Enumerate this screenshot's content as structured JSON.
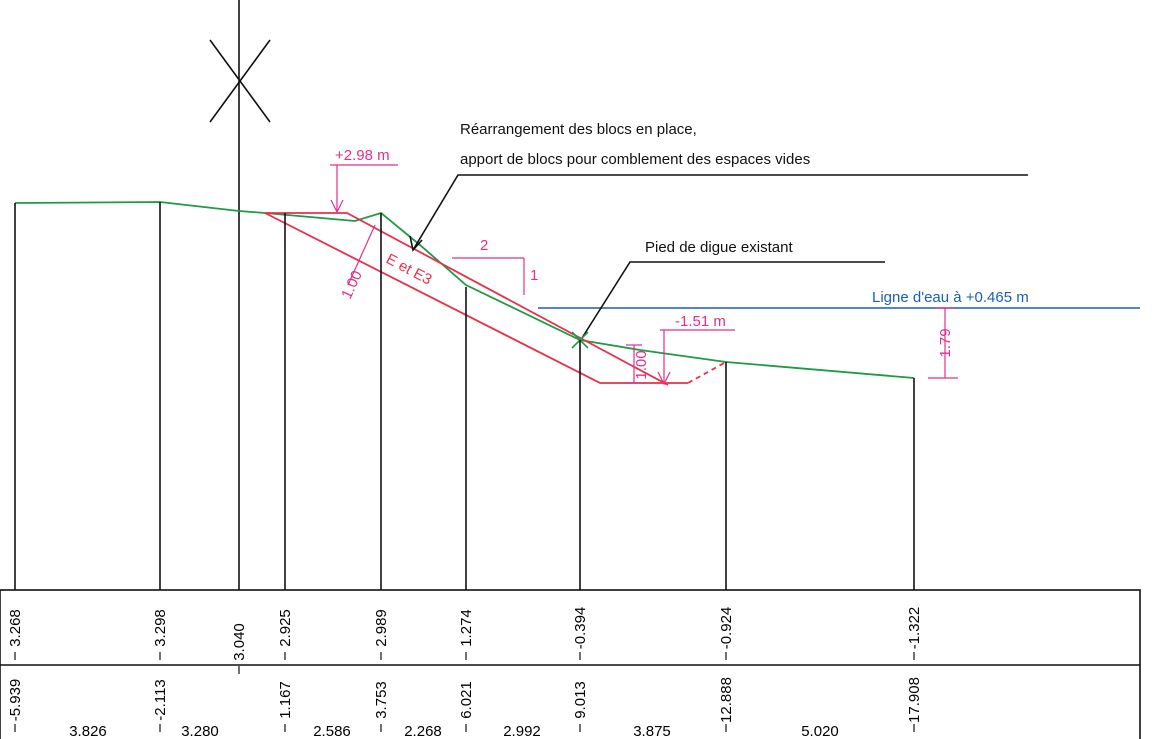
{
  "annotations": {
    "note_line1": "Réarrangement des blocs en place,",
    "note_line2": "apport de blocs pour comblement des espaces vides",
    "toe_label": "Pied de digue existant",
    "water_label": "Ligne d'eau à +0.465 m",
    "crest_level": "+2.98 m",
    "toe_level": "-1.51 m",
    "slope_run": "2",
    "slope_rise": "1",
    "layer_label": "E et E3",
    "thickness_slope": "1.00",
    "thickness_toe": "1.00",
    "water_depth": "1.79"
  },
  "stations": [
    {
      "elevation": "3.268",
      "distance": "-5.939"
    },
    {
      "elevation": "3.298",
      "distance": "-2.113"
    },
    {
      "elevation": "3.040"
    },
    {
      "elevation": "2.925",
      "distance": "1.167"
    },
    {
      "elevation": "2.989",
      "distance": "3.753"
    },
    {
      "elevation": "1.274",
      "distance": "6.021"
    },
    {
      "elevation": "-0.394",
      "distance": "9.013"
    },
    {
      "elevation": "-0.924",
      "distance": "12.888"
    },
    {
      "elevation": "-1.322",
      "distance": "17.908"
    }
  ],
  "spacings": [
    "3.826",
    "3.280",
    "2.586",
    "2.268",
    "2.992",
    "3.875",
    "5.020"
  ]
}
